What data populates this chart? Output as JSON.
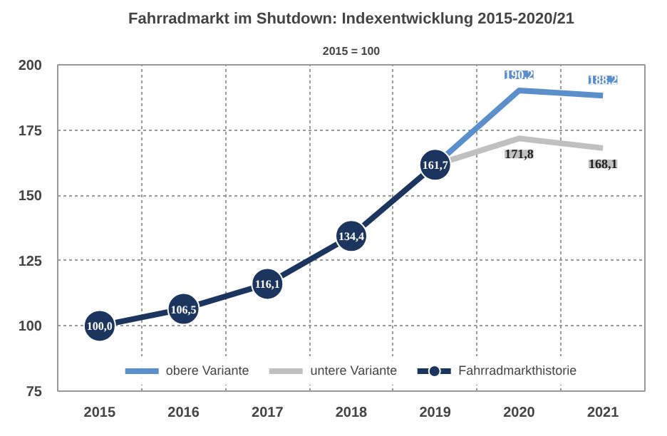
{
  "chart_data": {
    "type": "line",
    "title": "Fahrradmarkt im Shutdown: Indexentwicklung 2015-2020/21",
    "subtitle": "2015 = 100",
    "categories": [
      "2015",
      "2016",
      "2017",
      "2018",
      "2019",
      "2020",
      "2021"
    ],
    "ylim": [
      75,
      200
    ],
    "yticks": [
      75,
      100,
      125,
      150,
      175,
      200
    ],
    "grid": true,
    "legend": "bottom",
    "line_style": "solid",
    "series": [
      {
        "name": "obere Variante",
        "color": "#5b8fcb",
        "marker": "none",
        "values": [
          null,
          null,
          null,
          null,
          161.7,
          190.2,
          188.2
        ],
        "value_labels": [
          null,
          null,
          null,
          null,
          null,
          "190,2",
          "188,2"
        ]
      },
      {
        "name": "untere Variante",
        "color": "#c0c0c0",
        "marker": "none",
        "values": [
          null,
          null,
          null,
          null,
          161.7,
          171.8,
          168.1
        ],
        "value_labels": [
          null,
          null,
          null,
          null,
          null,
          "171,8",
          "168,1"
        ]
      },
      {
        "name": "Fahrradmarkthistorie",
        "color": "#1c355e",
        "marker": "circle",
        "values": [
          100.0,
          106.5,
          116.1,
          134.4,
          161.7,
          null,
          null
        ],
        "value_labels": [
          "100,0",
          "106,5",
          "116,1",
          "134,4",
          "161,7",
          null,
          null
        ]
      }
    ]
  }
}
